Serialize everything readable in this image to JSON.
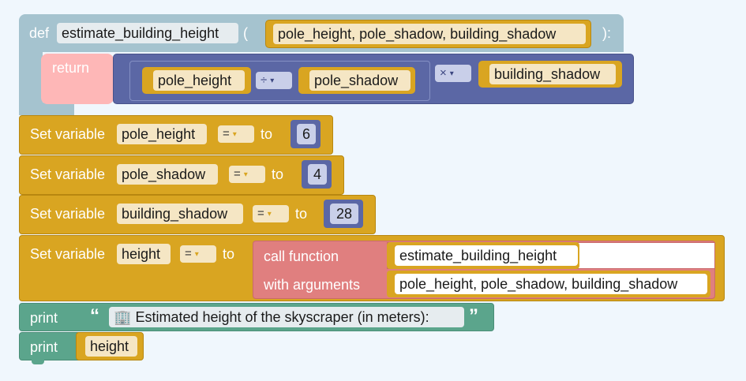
{
  "def_block": {
    "keyword": "def",
    "function_name": "estimate_building_height",
    "open_paren": "(",
    "params": "pole_height, pole_shadow, building_shadow",
    "close_paren": "):",
    "return_keyword": "return",
    "expression": {
      "left_var": "pole_height",
      "divide_op": "÷",
      "right_var": "pole_shadow",
      "multiply_op": "×",
      "factor_var": "building_shadow"
    }
  },
  "assignments": [
    {
      "label": "Set variable",
      "name": "pole_height",
      "op": "=",
      "to": "to",
      "value": "6"
    },
    {
      "label": "Set variable",
      "name": "pole_shadow",
      "op": "=",
      "to": "to",
      "value": "4"
    },
    {
      "label": "Set variable",
      "name": "building_shadow",
      "op": "=",
      "to": "to",
      "value": "28"
    }
  ],
  "call_assignment": {
    "label": "Set variable",
    "name": "height",
    "op": "=",
    "to": "to",
    "call_label": "call function",
    "call_name": "estimate_building_height",
    "args_label": "with arguments",
    "args": "pole_height, pole_shadow, building_shadow"
  },
  "prints": [
    {
      "label": "print",
      "open_quote": "“",
      "emoji": "🏢",
      "text": "Estimated height of the skyscraper (in meters):",
      "close_quote": "”"
    },
    {
      "label": "print",
      "var": "height"
    }
  ],
  "colors": {
    "def": "#a5c3cf",
    "return": "#feb7b7",
    "math": "#5b67a5",
    "variables": "#d9a521",
    "call": "#e07f7f",
    "print": "#5ba58c"
  }
}
